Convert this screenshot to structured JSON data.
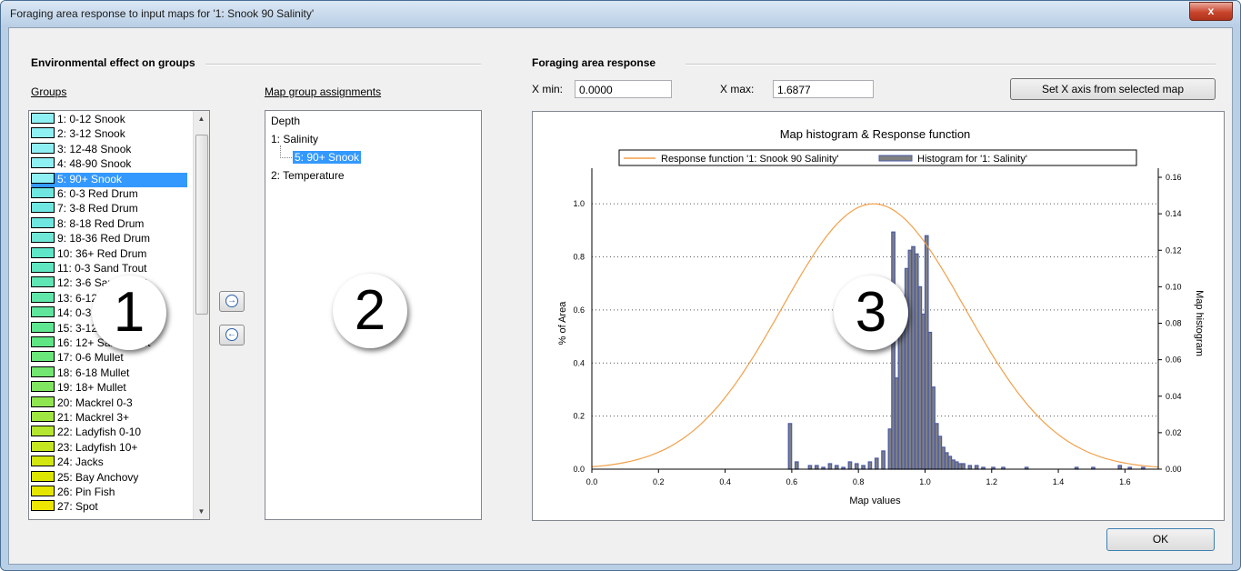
{
  "window": {
    "title": "Foraging area response to input maps for '1: Snook 90 Salinity'",
    "close_label": "x"
  },
  "env_section": {
    "title": "Environmental effect on groups",
    "groups_label": "Groups",
    "map_assign_label": "Map group assignments"
  },
  "groups": [
    {
      "label": "1: 0-12 Snook",
      "color": "#8ff0f4"
    },
    {
      "label": "2: 3-12 Snook",
      "color": "#8ff0f4"
    },
    {
      "label": "3: 12-48 Snook",
      "color": "#8ff0f4"
    },
    {
      "label": "4: 48-90 Snook",
      "color": "#8ff0f4"
    },
    {
      "label": "5: 90+ Snook",
      "color": "#8ff0f4"
    },
    {
      "label": "6: 0-3 Red Drum",
      "color": "#6fe6e0"
    },
    {
      "label": "7: 3-8 Red Drum",
      "color": "#6fe6e0"
    },
    {
      "label": "8: 8-18 Red Drum",
      "color": "#6fe6e0"
    },
    {
      "label": "9: 18-36 Red Drum",
      "color": "#6fe6d6"
    },
    {
      "label": "10: 36+ Red Drum",
      "color": "#5fe6c8"
    },
    {
      "label": "11: 0-3 Sand Trout",
      "color": "#5fe6c0"
    },
    {
      "label": "12: 3-6 Sand Trout",
      "color": "#5fe6b4"
    },
    {
      "label": "13: 6-12 Sand Trout",
      "color": "#5fe6a8"
    },
    {
      "label": "14: 0-3 Sand Trout",
      "color": "#5fe69c"
    },
    {
      "label": "15: 3-12 Sand Trout",
      "color": "#5fe690"
    },
    {
      "label": "16: 12+ Sand Trout",
      "color": "#5fe684"
    },
    {
      "label": "17: 0-6 Mullet",
      "color": "#6ae67a"
    },
    {
      "label": "18: 6-18 Mullet",
      "color": "#72e670"
    },
    {
      "label": "19: 18+ Mullet",
      "color": "#80e660"
    },
    {
      "label": "20: Mackrel 0-3",
      "color": "#90e650"
    },
    {
      "label": "21: Mackrel 3+",
      "color": "#a0e640"
    },
    {
      "label": "22: Ladyfish 0-10",
      "color": "#b4e630"
    },
    {
      "label": "23: Ladyfish 10+",
      "color": "#c4e620"
    },
    {
      "label": "24: Jacks",
      "color": "#d2e610"
    },
    {
      "label": "25: Bay Anchovy",
      "color": "#dbe600"
    },
    {
      "label": "26: Pin Fish",
      "color": "#e4e600"
    },
    {
      "label": "27: Spot",
      "color": "#ece600"
    }
  ],
  "selected_group_index": 4,
  "map_tree": [
    {
      "label": "Depth",
      "level": 0
    },
    {
      "label": "1: Salinity",
      "level": 0
    },
    {
      "label": "5: 90+ Snook",
      "level": 1,
      "selected": true
    },
    {
      "label": "2: Temperature",
      "level": 0
    }
  ],
  "arrows": {
    "add": "→",
    "remove": "←"
  },
  "response_section": {
    "title": "Foraging area response",
    "xmin_label": "X min:",
    "xmin_value": "0.0000",
    "xmax_label": "X max:",
    "xmax_value": "1.6877",
    "set_x_button": "Set X axis from selected map"
  },
  "ok_button": "OK",
  "badges": [
    "1",
    "2",
    "3"
  ],
  "chart_data": {
    "type": "bar+line",
    "title": "Map histogram & Response function",
    "xlabel": "Map values",
    "ylabel": "% of Area",
    "y2label": "Map histogram",
    "xlim": [
      0,
      1.7
    ],
    "ylim": [
      0,
      1.1
    ],
    "y2lim": [
      0,
      0.16
    ],
    "x_ticks": [
      "0.0",
      "0.2",
      "0.4",
      "0.6",
      "0.8",
      "1.0",
      "1.2",
      "1.4",
      "1.6"
    ],
    "y_ticks": [
      "0.0",
      "0.2",
      "0.4",
      "0.6",
      "0.8",
      "1.0"
    ],
    "y2_ticks": [
      "0.00",
      "0.02",
      "0.04",
      "0.06",
      "0.08",
      "0.10",
      "0.12",
      "0.14",
      "0.16"
    ],
    "legend": [
      "Response function '1: Snook 90 Salinity'",
      "Histogram for '1: Salinity'"
    ],
    "line_color": "#f0a04a",
    "bar_color": "#808080",
    "bar_edge": "#4a5aa8",
    "response": {
      "mean": 0.845,
      "sd": 0.275
    },
    "histogram": [
      [
        0.59,
        0.025
      ],
      [
        0.61,
        0.004
      ],
      [
        0.65,
        0.002
      ],
      [
        0.67,
        0.002
      ],
      [
        0.69,
        0.001
      ],
      [
        0.71,
        0.003
      ],
      [
        0.73,
        0.002
      ],
      [
        0.75,
        0.001
      ],
      [
        0.77,
        0.004
      ],
      [
        0.79,
        0.003
      ],
      [
        0.81,
        0.002
      ],
      [
        0.83,
        0.004
      ],
      [
        0.85,
        0.006
      ],
      [
        0.87,
        0.01
      ],
      [
        0.89,
        0.022
      ],
      [
        0.9,
        0.13
      ],
      [
        0.91,
        0.05
      ],
      [
        0.92,
        0.08
      ],
      [
        0.93,
        0.095
      ],
      [
        0.94,
        0.11
      ],
      [
        0.95,
        0.12
      ],
      [
        0.96,
        0.122
      ],
      [
        0.97,
        0.118
      ],
      [
        0.98,
        0.1
      ],
      [
        0.99,
        0.085
      ],
      [
        1.0,
        0.128
      ],
      [
        1.01,
        0.075
      ],
      [
        1.02,
        0.045
      ],
      [
        1.03,
        0.025
      ],
      [
        1.04,
        0.018
      ],
      [
        1.05,
        0.012
      ],
      [
        1.06,
        0.009
      ],
      [
        1.07,
        0.007
      ],
      [
        1.08,
        0.005
      ],
      [
        1.09,
        0.004
      ],
      [
        1.1,
        0.003
      ],
      [
        1.11,
        0.003
      ],
      [
        1.13,
        0.002
      ],
      [
        1.15,
        0.002
      ],
      [
        1.17,
        0.001
      ],
      [
        1.2,
        0.001
      ],
      [
        1.23,
        0.001
      ],
      [
        1.3,
        0.001
      ],
      [
        1.45,
        0.001
      ],
      [
        1.5,
        0.001
      ],
      [
        1.58,
        0.002
      ],
      [
        1.61,
        0.001
      ],
      [
        1.65,
        0.001
      ]
    ]
  }
}
